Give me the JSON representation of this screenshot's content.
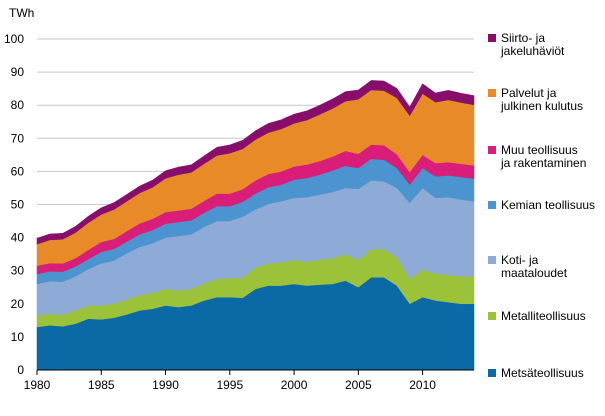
{
  "chart_data": {
    "type": "area",
    "stacked": true,
    "unit_label": "TWh",
    "xlim": [
      1980,
      2014
    ],
    "ylim": [
      0,
      100
    ],
    "x_ticks": [
      1980,
      1985,
      1990,
      1995,
      2000,
      2005,
      2010
    ],
    "y_ticks": [
      0,
      10,
      20,
      30,
      40,
      50,
      60,
      70,
      80,
      90,
      100
    ],
    "grid": true,
    "legend_position": "right",
    "x": [
      1980,
      1981,
      1982,
      1983,
      1984,
      1985,
      1986,
      1987,
      1988,
      1989,
      1990,
      1991,
      1992,
      1993,
      1994,
      1995,
      1996,
      1997,
      1998,
      1999,
      2000,
      2001,
      2002,
      2003,
      2004,
      2005,
      2006,
      2007,
      2008,
      2009,
      2010,
      2011,
      2012,
      2013,
      2014
    ],
    "series": [
      {
        "name": "Metsäteollisuus",
        "color": "#0b6aa5",
        "values": [
          13,
          13.5,
          13.2,
          14,
          15.5,
          15.3,
          15.8,
          16.8,
          18,
          18.5,
          19.5,
          19,
          19.5,
          21,
          22,
          22,
          21.8,
          24.5,
          25.5,
          25.5,
          26,
          25.5,
          25.8,
          26,
          27,
          25,
          28,
          28,
          25.5,
          20,
          22,
          21,
          20.5,
          20,
          20
        ]
      },
      {
        "name": "Metalliteollisuus",
        "color": "#9cc23a",
        "values": [
          3.5,
          3.5,
          3.5,
          4,
          4,
          4.2,
          4.3,
          4.5,
          4.7,
          4.8,
          5,
          5,
          5,
          5.2,
          5.5,
          5.8,
          6,
          6.5,
          6.7,
          7,
          7.2,
          7.2,
          7.5,
          7.8,
          8,
          8.2,
          8.5,
          8.5,
          8.5,
          7.5,
          8.3,
          8.2,
          8.2,
          8.3,
          8.3
        ]
      },
      {
        "name": "Koti- ja maataloudet",
        "color": "#8eaad6",
        "values": [
          9.5,
          9.8,
          10,
          10.3,
          11,
          12.7,
          13,
          14,
          14.5,
          15,
          15.5,
          16.5,
          16.5,
          17,
          17.5,
          17.2,
          18.5,
          17.5,
          18,
          18.5,
          18.8,
          19.5,
          19.7,
          20,
          20,
          21.5,
          20.8,
          20.5,
          21,
          23,
          24.7,
          22.8,
          23.5,
          23.2,
          22.7
        ]
      },
      {
        "name": "Kemian teollisuus",
        "color": "#4b94cf",
        "values": [
          3,
          3,
          3,
          3,
          3,
          3.5,
          3.5,
          3.5,
          3.8,
          4,
          4.2,
          4.2,
          4.2,
          4.3,
          4.5,
          4.5,
          4.5,
          4.8,
          5,
          5,
          5.5,
          5.8,
          6,
          6.5,
          6.7,
          6.3,
          6.5,
          6.5,
          6,
          5.5,
          6,
          6.5,
          6.6,
          6.8,
          6.8
        ]
      },
      {
        "name": "Muu teollisuus ja rakentaminen",
        "color": "#d81e78",
        "values": [
          2.5,
          2.5,
          2.5,
          2.5,
          2.8,
          3,
          3,
          3.2,
          3.3,
          3.4,
          3.5,
          3.5,
          3.5,
          3.6,
          3.8,
          3.8,
          3.8,
          4,
          4,
          4,
          4,
          4.1,
          4.1,
          4.2,
          4.5,
          4.3,
          4.3,
          4.4,
          4.2,
          3.8,
          4,
          4,
          4,
          4,
          4
        ]
      },
      {
        "name": "Palvelut ja julkinen kulutus",
        "color": "#e98a28",
        "values": [
          6.5,
          7,
          7.3,
          7.7,
          8.2,
          8.3,
          8.9,
          9,
          9.2,
          9.5,
          10.2,
          10.8,
          11,
          11.2,
          11.5,
          12.2,
          12.2,
          12.3,
          12.5,
          12.8,
          13,
          13.4,
          14.1,
          14.5,
          15,
          16.5,
          16.5,
          16.5,
          17,
          17,
          18.5,
          18.4,
          18.8,
          18.5,
          18.3
        ]
      },
      {
        "name": "Siirto- ja jakeluhäviöt",
        "color": "#870e6a",
        "values": [
          1.8,
          1.8,
          1.8,
          1.9,
          2,
          2,
          2.1,
          2.1,
          2.1,
          2.2,
          2.3,
          2.3,
          2.3,
          2.4,
          2.5,
          2.5,
          2.6,
          2.7,
          2.8,
          2.8,
          2.8,
          2.8,
          2.8,
          2.9,
          2.9,
          2.8,
          2.9,
          2.9,
          2.9,
          2.7,
          3,
          2.8,
          2.9,
          2.8,
          2.8
        ]
      }
    ]
  }
}
